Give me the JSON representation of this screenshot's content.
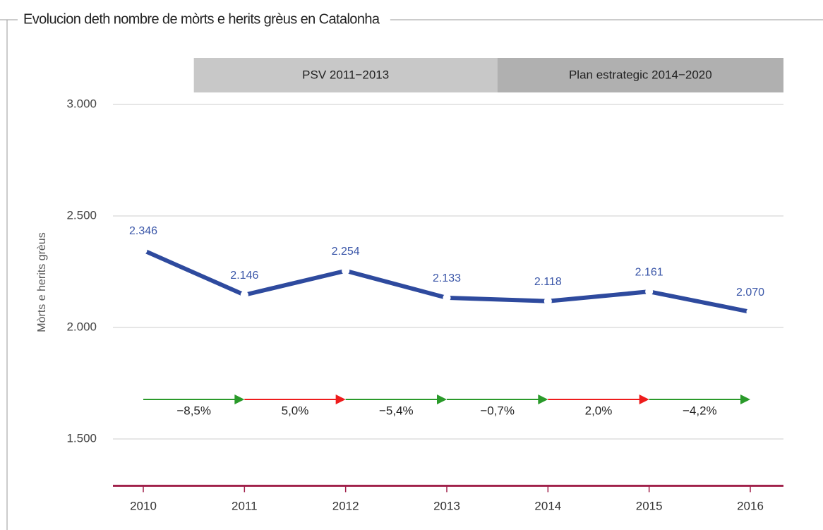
{
  "chart_data": {
    "type": "line",
    "title": "Evolucion deth nombre de mòrts e herits grèus en Catalonha",
    "y_label": "Mòrts e herits grèus",
    "categories": [
      "2010",
      "2011",
      "2012",
      "2013",
      "2014",
      "2015",
      "2016"
    ],
    "series": [
      {
        "name": "Mòrts e herits grèus",
        "color": "#2e4a9e",
        "values": [
          2346,
          2146,
          2254,
          2133,
          2118,
          2161,
          2070
        ],
        "value_labels": [
          "2.346",
          "2.146",
          "2.254",
          "2.133",
          "2.118",
          "2.161",
          "2.070"
        ]
      }
    ],
    "ylim": [
      1290,
      3000
    ],
    "yticks": [
      {
        "value": 1500,
        "label": "1.500"
      },
      {
        "value": 2000,
        "label": "2.000"
      },
      {
        "value": 2500,
        "label": "2.500"
      },
      {
        "value": 3000,
        "label": "3.000"
      }
    ],
    "grid": true,
    "periods": [
      {
        "label": "PSV 2011−2013",
        "color": "#c8c8c8"
      },
      {
        "label": "Plan estrategic 2014−2020",
        "color": "#b0b0b0"
      }
    ],
    "changes": [
      {
        "value": -8.5,
        "label": "−8,5%",
        "color": "#2a9a2a"
      },
      {
        "value": 5.0,
        "label": "5,0%",
        "color": "#ee1c1c"
      },
      {
        "value": -5.4,
        "label": "−5,4%",
        "color": "#2a9a2a"
      },
      {
        "value": -0.7,
        "label": "−0,7%",
        "color": "#2a9a2a"
      },
      {
        "value": 2.0,
        "label": "2,0%",
        "color": "#ee1c1c"
      },
      {
        "value": -4.2,
        "label": "−4,2%",
        "color": "#2a9a2a"
      }
    ]
  }
}
